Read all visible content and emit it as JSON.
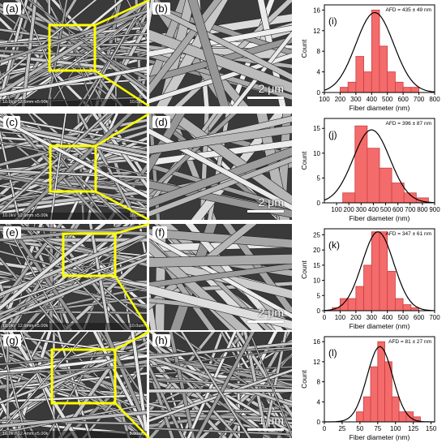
{
  "left_panels": [
    {
      "label": "(a)",
      "meta_left": "10.0kV 12.6mm x5.00k",
      "meta_right": "10.0um"
    },
    {
      "label": "(c)",
      "meta_left": "10.0kV 12.6mm x5.00k",
      "meta_right": "10.0um"
    },
    {
      "label": "(e)",
      "meta_left": "10.0kV 12.6mm x5.00k",
      "meta_right": "10.0um"
    },
    {
      "label": "(g)",
      "meta_left": "10.0kV 12.4mm x5.00k",
      "meta_right": "5.00um"
    }
  ],
  "mid_panels": [
    {
      "label": "(b)",
      "scale": "2 μm"
    },
    {
      "label": "(d)",
      "scale": "2 μm"
    },
    {
      "label": "(f)",
      "scale": "2 μm"
    },
    {
      "label": "(h)",
      "scale": "1 μm"
    }
  ],
  "colors": {
    "highlight": "#ffff00",
    "bar": "#f46b6b",
    "bar_edge": "#c94040",
    "curve": "#000000"
  },
  "chart_data": [
    {
      "type": "bar",
      "panel": "(i)",
      "annotation": "AFD = 435 ± 49 nm",
      "xlabel": "Fiber diameter (nm)",
      "ylabel": "Count",
      "xlim": [
        100,
        800
      ],
      "ylim": [
        0,
        17
      ],
      "xticks": [
        100,
        200,
        300,
        400,
        500,
        600,
        700,
        800
      ],
      "yticks": [
        0,
        4,
        8,
        12,
        16
      ],
      "bins": [
        [
          200,
          250
        ],
        [
          250,
          300
        ],
        [
          300,
          350
        ],
        [
          350,
          400
        ],
        [
          400,
          450
        ],
        [
          450,
          500
        ],
        [
          500,
          550
        ],
        [
          550,
          600
        ],
        [
          600,
          650
        ],
        [
          650,
          700
        ]
      ],
      "values": [
        1,
        2,
        7,
        4,
        16,
        9,
        4,
        2,
        1,
        1
      ],
      "fit": {
        "mean": 420,
        "sd": 120,
        "peak": 15.5
      }
    },
    {
      "type": "bar",
      "panel": "(j)",
      "annotation": "AFD = 396 ± 87 nm",
      "xlabel": "Fiber diameter (nm)",
      "ylabel": "Count",
      "xlim": [
        0,
        900
      ],
      "ylim": [
        0,
        17
      ],
      "xticks": [
        100,
        200,
        300,
        400,
        500,
        600,
        700,
        800,
        900
      ],
      "yticks": [
        0,
        5,
        10,
        15
      ],
      "bins": [
        [
          150,
          250
        ],
        [
          250,
          350
        ],
        [
          350,
          450
        ],
        [
          450,
          550
        ],
        [
          550,
          650
        ],
        [
          650,
          750
        ],
        [
          750,
          850
        ]
      ],
      "values": [
        2,
        15.5,
        11,
        7,
        4,
        2,
        1
      ],
      "fit": {
        "mean": 385,
        "sd": 150,
        "peak": 14.7
      }
    },
    {
      "type": "bar",
      "panel": "(k)",
      "annotation": "AFD = 347 ± 61 nm",
      "xlabel": "Fiber diameter (nm)",
      "ylabel": "Count",
      "xlim": [
        0,
        700
      ],
      "ylim": [
        0,
        27
      ],
      "xticks": [
        0,
        100,
        200,
        300,
        400,
        500,
        600,
        700
      ],
      "yticks": [
        0,
        5,
        10,
        15,
        20,
        25
      ],
      "bins": [
        [
          50,
          100
        ],
        [
          100,
          150
        ],
        [
          150,
          200
        ],
        [
          200,
          250
        ],
        [
          250,
          300
        ],
        [
          300,
          350
        ],
        [
          350,
          400
        ],
        [
          400,
          450
        ],
        [
          450,
          500
        ],
        [
          500,
          550
        ],
        [
          550,
          600
        ]
      ],
      "values": [
        1,
        4,
        4,
        8,
        15,
        26,
        26,
        13,
        4,
        2,
        1
      ],
      "fit": {
        "mean": 340,
        "sd": 100,
        "peak": 26
      }
    },
    {
      "type": "bar",
      "panel": "(l)",
      "annotation": "AFD = 81 ± 27 nm",
      "xlabel": "Fiber diameter (nm)",
      "ylabel": "Count",
      "xlim": [
        0,
        155
      ],
      "ylim": [
        0,
        17
      ],
      "xticks": [
        0,
        25,
        50,
        75,
        100,
        125,
        150
      ],
      "yticks": [
        0,
        4,
        8,
        12,
        16
      ],
      "bins": [
        [
          45,
          55
        ],
        [
          55,
          65
        ],
        [
          65,
          75
        ],
        [
          75,
          85
        ],
        [
          85,
          95
        ],
        [
          95,
          105
        ],
        [
          105,
          115
        ],
        [
          115,
          125
        ],
        [
          125,
          135
        ]
      ],
      "values": [
        2,
        5,
        11,
        16,
        12,
        5,
        2,
        2,
        1
      ],
      "fit": {
        "mean": 78,
        "sd": 18,
        "peak": 15
      }
    }
  ]
}
